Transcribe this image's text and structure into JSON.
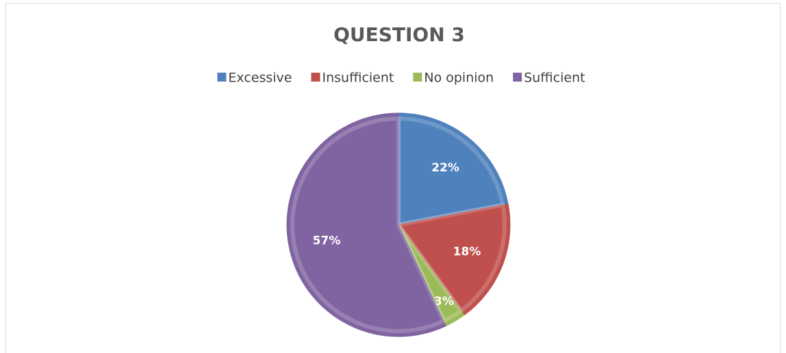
{
  "chart_data": {
    "type": "pie",
    "title": "QUESTION 3",
    "categories": [
      "Excessive",
      "Insufficient",
      "No opinion",
      "Sufficient"
    ],
    "values": [
      22,
      18,
      3,
      57
    ],
    "value_labels": [
      "22%",
      "18%",
      "3%",
      "57%"
    ],
    "colors": [
      "#4f81bd",
      "#c0504d",
      "#9bbb59",
      "#8064a2"
    ],
    "legend": "top"
  }
}
